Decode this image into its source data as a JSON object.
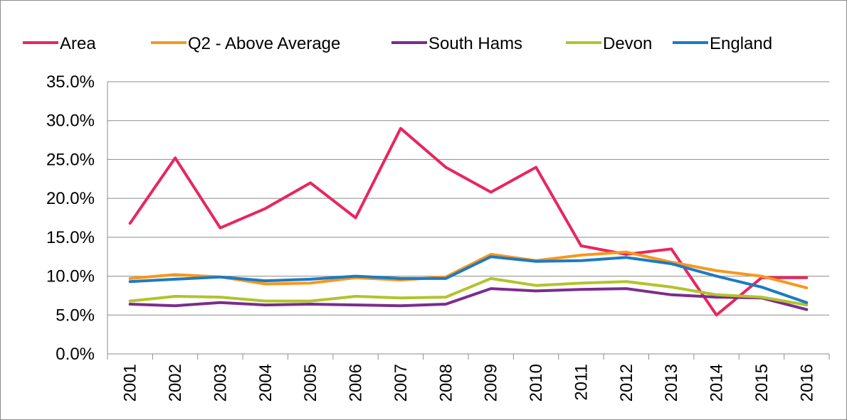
{
  "chart_data": {
    "type": "line",
    "title": "",
    "xlabel": "",
    "ylabel": "",
    "ylim": [
      0,
      0.35
    ],
    "y_ticks": [
      "0.0%",
      "5.0%",
      "10.0%",
      "15.0%",
      "20.0%",
      "25.0%",
      "30.0%",
      "35.0%"
    ],
    "grid": true,
    "legend_position": "top",
    "categories": [
      "2001",
      "2002",
      "2003",
      "2004",
      "2005",
      "2006",
      "2007",
      "2008",
      "2009",
      "2010",
      "2011",
      "2012",
      "2013",
      "2014",
      "2015",
      "2016"
    ],
    "series": [
      {
        "name": "Area",
        "color": "#e8265e",
        "values": [
          0.168,
          0.252,
          0.162,
          0.187,
          0.22,
          0.175,
          0.29,
          0.24,
          0.208,
          0.24,
          0.139,
          0.128,
          0.135,
          0.05,
          0.098,
          0.098
        ]
      },
      {
        "name": "Q2 - Above Average",
        "color": "#f7981d",
        "values": [
          0.097,
          0.102,
          0.099,
          0.09,
          0.091,
          0.098,
          0.095,
          0.099,
          0.128,
          0.12,
          0.127,
          0.131,
          0.118,
          0.107,
          0.1,
          0.085
        ]
      },
      {
        "name": "South Hams",
        "color": "#7b2c8e",
        "values": [
          0.064,
          0.062,
          0.066,
          0.063,
          0.064,
          0.063,
          0.062,
          0.064,
          0.084,
          0.081,
          0.083,
          0.084,
          0.076,
          0.073,
          0.072,
          0.057
        ]
      },
      {
        "name": "Devon",
        "color": "#b2c32c",
        "values": [
          0.068,
          0.074,
          0.073,
          0.068,
          0.068,
          0.074,
          0.072,
          0.073,
          0.097,
          0.088,
          0.091,
          0.093,
          0.086,
          0.076,
          0.073,
          0.063
        ]
      },
      {
        "name": "England",
        "color": "#1d7ac2",
        "values": [
          0.093,
          0.096,
          0.099,
          0.094,
          0.096,
          0.1,
          0.097,
          0.097,
          0.125,
          0.119,
          0.12,
          0.124,
          0.116,
          0.1,
          0.086,
          0.066
        ]
      }
    ]
  }
}
